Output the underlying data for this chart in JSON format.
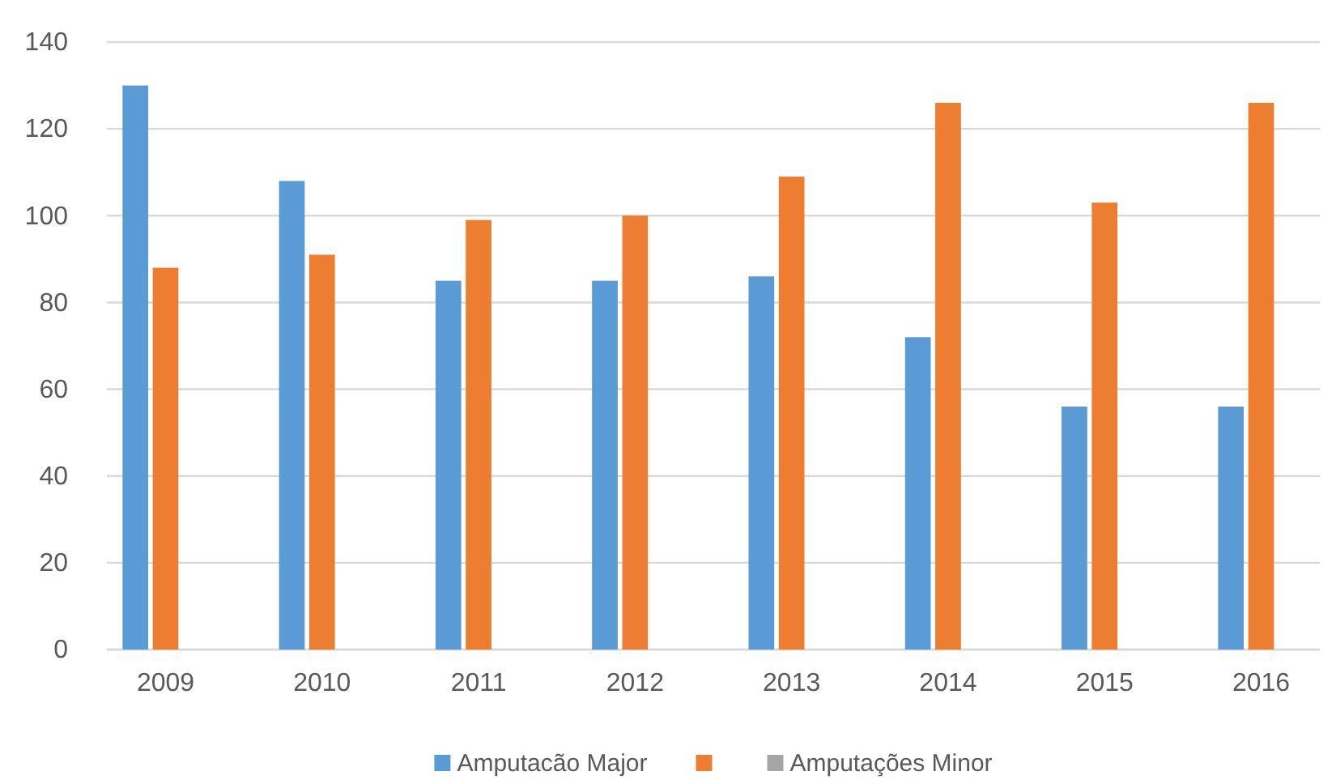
{
  "chart_data": {
    "type": "bar",
    "categories": [
      "2009",
      "2010",
      "2011",
      "2012",
      "2013",
      "2014",
      "2015",
      "2016"
    ],
    "series": [
      {
        "name": "Amputacão Major",
        "color": "#5b9bd5",
        "values": [
          130,
          108,
          85,
          85,
          86,
          72,
          56,
          56
        ]
      },
      {
        "color": "#ed7d31",
        "values": [
          88,
          91,
          99,
          100,
          109,
          126,
          103,
          126
        ]
      },
      {
        "name": "Amputações Minor",
        "color": "#a5a5a5",
        "values": [
          null,
          null,
          null,
          null,
          null,
          null,
          null,
          null
        ]
      }
    ],
    "ylim": [
      0,
      140
    ],
    "yticks": [
      0,
      20,
      40,
      60,
      80,
      100,
      120,
      140
    ],
    "grid": "y",
    "legend": "bottom"
  }
}
